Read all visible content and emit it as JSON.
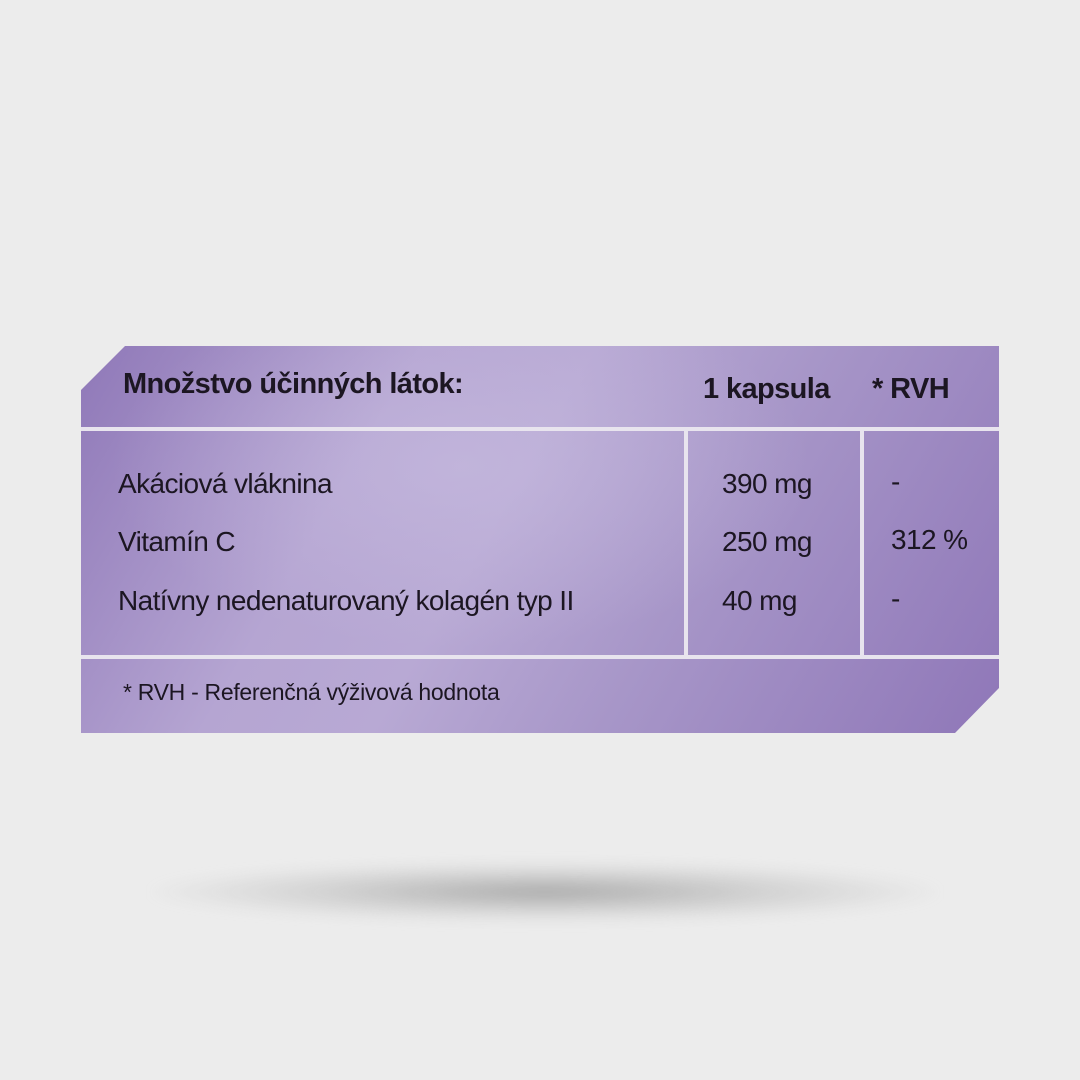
{
  "header": {
    "title": "Množstvo účinných látok:",
    "col_amount": "1 kapsula",
    "col_rvh": "* RVH"
  },
  "rows": [
    {
      "name": "Akáciová vláknina",
      "amount": "390 mg",
      "rvh": "-"
    },
    {
      "name": "Vitamín C",
      "amount": "250 mg",
      "rvh": "312 %"
    },
    {
      "name": "Natívny nedenaturovaný kolagén typ II",
      "amount": "40 mg",
      "rvh": "-"
    }
  ],
  "footnote": "* RVH - Referenčná výživová hodnota",
  "colors": {
    "panel": "#a999cc",
    "lines": "#e8e4ee",
    "text": "#1c1622",
    "background": "#ececec"
  }
}
